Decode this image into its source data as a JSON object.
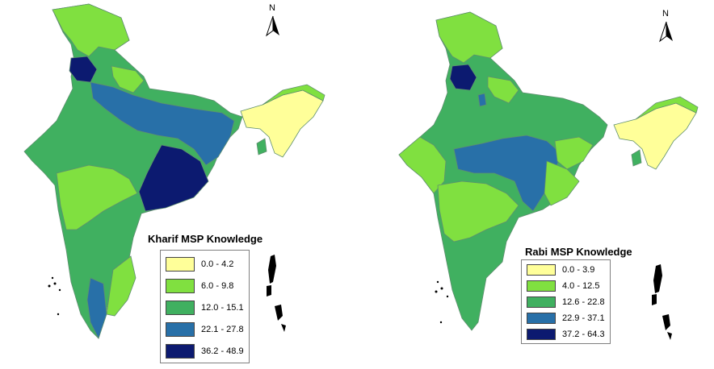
{
  "maps": [
    {
      "title": "Kharif  MSP Knowledge",
      "legend": [
        {
          "label": "0.0 - 4.2",
          "color": "#ffff99"
        },
        {
          "label": "6.0 - 9.8",
          "color": "#80e040"
        },
        {
          "label": "12.0 - 15.1",
          "color": "#40b060"
        },
        {
          "label": "22.1 - 27.8",
          "color": "#2870a8"
        },
        {
          "label": "36.2 - 48.9",
          "color": "#0c1a70"
        }
      ]
    },
    {
      "title": "Rabi MSP Knowledge",
      "legend": [
        {
          "label": "0.0 - 3.9",
          "color": "#ffff99"
        },
        {
          "label": "4.0 - 12.5",
          "color": "#80e040"
        },
        {
          "label": "12.6 - 22.8",
          "color": "#40b060"
        },
        {
          "label": "22.9 - 37.1",
          "color": "#2870a8"
        },
        {
          "label": "37.2 - 64.3",
          "color": "#0c1a70"
        }
      ]
    }
  ],
  "north_arrow": "N",
  "icons": [
    "north-arrow-icon"
  ]
}
